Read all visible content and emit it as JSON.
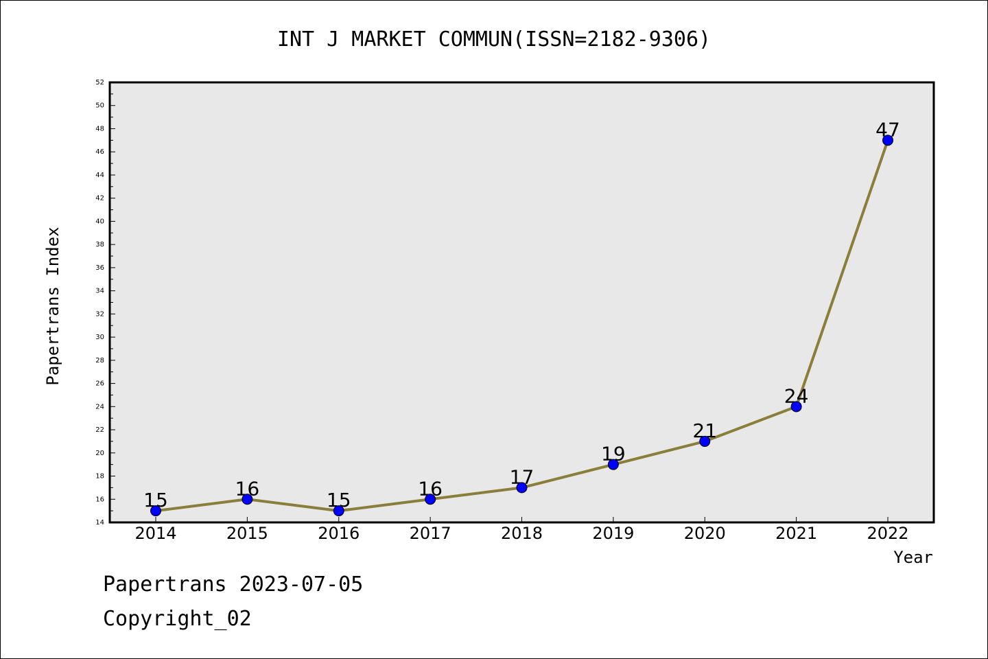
{
  "chart_data": {
    "type": "line",
    "title": "INT J MARKET COMMUN(ISSN=2182-9306)",
    "xlabel": "Year",
    "ylabel": "Papertrans Index",
    "categories": [
      "2014",
      "2015",
      "2016",
      "2017",
      "2018",
      "2019",
      "2020",
      "2021",
      "2022"
    ],
    "series": [
      {
        "values": [
          15,
          16,
          15,
          16,
          17,
          19,
          21,
          24,
          47
        ]
      }
    ],
    "data_labels": [
      "15",
      "16",
      "15",
      "16",
      "17",
      "19",
      "21",
      "24",
      "47"
    ],
    "ylim": [
      14,
      52
    ],
    "yticks": [
      14,
      16,
      18,
      20,
      22,
      24,
      26,
      28,
      30,
      32,
      34,
      36,
      38,
      40,
      42,
      44,
      46,
      48,
      50,
      52
    ],
    "grid": false,
    "colors": {
      "line": "#8b7d3a",
      "marker": "#0000ff",
      "plot_background": "#e8e8e8"
    }
  },
  "footer": {
    "stamp": "Papertrans 2023-07-05",
    "copyright": "Copyright_02"
  }
}
